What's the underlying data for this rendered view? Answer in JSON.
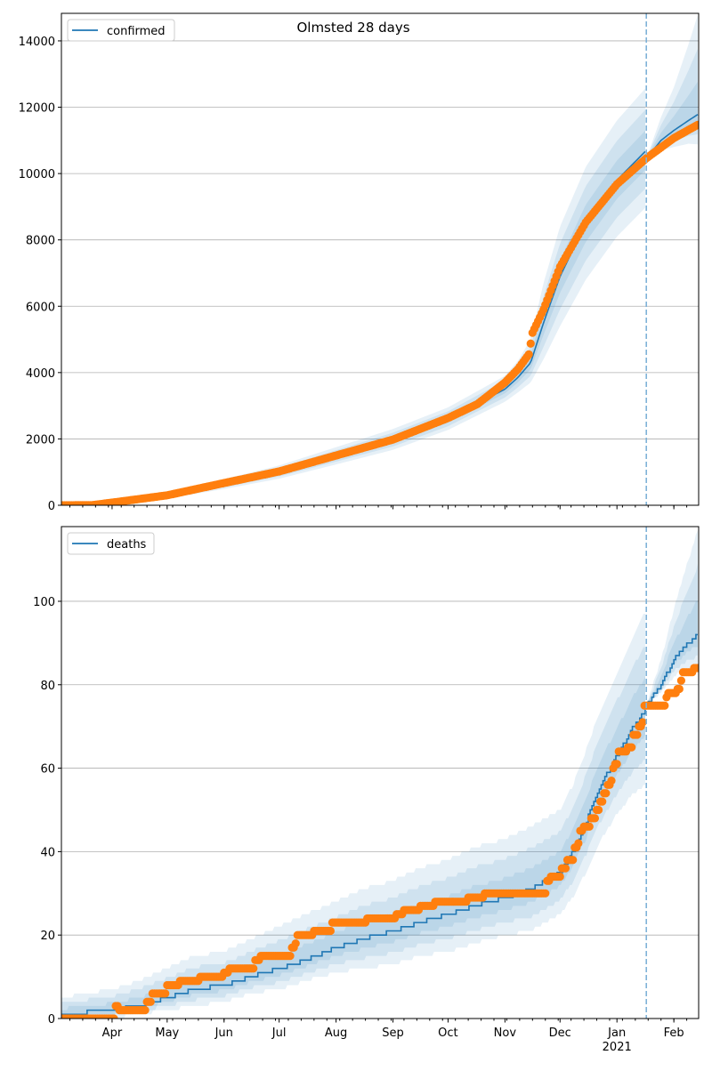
{
  "title": "Olmsted 28 days",
  "colors": {
    "model": "#1f77b4",
    "observed": "#ff7f0e",
    "band": "#1f77b4",
    "grid": "#b0b0b0",
    "forecast_line": "#7fb2d8"
  },
  "chart_data": [
    {
      "type": "line",
      "id": "confirmed",
      "legend": "confirmed",
      "legend_placement": "top-left",
      "ylim": [
        0,
        14830
      ],
      "yticks": [
        0,
        2000,
        4000,
        6000,
        8000,
        10000,
        12000,
        14000
      ],
      "grid": true,
      "x_unit": "days since 2020-03-01",
      "xlim": [
        3.4,
        350.5
      ],
      "forecast_start_day": 322,
      "band_levels": [
        1,
        0.66,
        0.33
      ],
      "observed_knots": [
        [
          3,
          0
        ],
        [
          20,
          5
        ],
        [
          31,
          80
        ],
        [
          61,
          300
        ],
        [
          92,
          670
        ],
        [
          122,
          1020
        ],
        [
          153,
          1500
        ],
        [
          184,
          1980
        ],
        [
          214,
          2630
        ],
        [
          230,
          3050
        ],
        [
          245,
          3700
        ],
        [
          252,
          4100
        ],
        [
          258,
          4550
        ],
        [
          260,
          5200
        ],
        [
          266,
          5900
        ],
        [
          275,
          7190
        ],
        [
          289,
          8530
        ],
        [
          306,
          9680
        ],
        [
          322,
          10460
        ],
        [
          337,
          11070
        ],
        [
          350,
          11470
        ]
      ],
      "model_segments": [
        {
          "days": [
            3,
            31,
            61,
            92,
            122,
            153,
            184,
            214,
            245,
            252,
            259,
            266,
            275,
            289,
            306,
            322
          ],
          "median": [
            0,
            80,
            290,
            640,
            1000,
            1480,
            1970,
            2600,
            3500,
            3850,
            4300,
            5500,
            6900,
            8500,
            9800,
            10700
          ],
          "upper": [
            0,
            40,
            90,
            150,
            200,
            270,
            330,
            350,
            400,
            500,
            700,
            1200,
            1500,
            1700,
            1800,
            1900
          ],
          "lower": [
            0,
            40,
            90,
            150,
            200,
            250,
            300,
            330,
            380,
            450,
            600,
            1100,
            1500,
            1700,
            1700,
            1700
          ]
        },
        {
          "days": [
            322,
            330,
            337,
            345,
            350
          ],
          "median": [
            10450,
            11000,
            11300,
            11600,
            11780
          ],
          "upper": [
            0,
            700,
            1300,
            2300,
            3000
          ],
          "lower": [
            0,
            300,
            500,
            700,
            900
          ]
        }
      ]
    },
    {
      "type": "line",
      "id": "deaths",
      "legend": "deaths",
      "legend_placement": "top-left",
      "ylim": [
        0,
        117.9
      ],
      "yticks": [
        0,
        20,
        40,
        60,
        80,
        100
      ],
      "grid": true,
      "x_unit": "days since 2020-03-01",
      "xlim": [
        3.4,
        350.5
      ],
      "forecast_start_day": 322,
      "band_levels": [
        1,
        0.66,
        0.33
      ],
      "observed_steps": [
        [
          3,
          0
        ],
        [
          33,
          3
        ],
        [
          35,
          2
        ],
        [
          50,
          4
        ],
        [
          53,
          6
        ],
        [
          61,
          8
        ],
        [
          68,
          9
        ],
        [
          79,
          10
        ],
        [
          92,
          11
        ],
        [
          95,
          12
        ],
        [
          109,
          14
        ],
        [
          112,
          15
        ],
        [
          129,
          17
        ],
        [
          131,
          18
        ],
        [
          132,
          20
        ],
        [
          141,
          21
        ],
        [
          151,
          23
        ],
        [
          170,
          24
        ],
        [
          186,
          25
        ],
        [
          190,
          26
        ],
        [
          199,
          27
        ],
        [
          207,
          28
        ],
        [
          225,
          29
        ],
        [
          234,
          30
        ],
        [
          268,
          33
        ],
        [
          270,
          34
        ],
        [
          276,
          36
        ],
        [
          279,
          38
        ],
        [
          283,
          41
        ],
        [
          285,
          42
        ],
        [
          286,
          45
        ],
        [
          288,
          46
        ],
        [
          292,
          48
        ],
        [
          295,
          50
        ],
        [
          297,
          52
        ],
        [
          299,
          54
        ],
        [
          301,
          56
        ],
        [
          303,
          57
        ],
        [
          304,
          60
        ],
        [
          305,
          61
        ],
        [
          307,
          64
        ],
        [
          312,
          65
        ],
        [
          315,
          68
        ],
        [
          318,
          70
        ],
        [
          320,
          71
        ],
        [
          321,
          75
        ],
        [
          333,
          77
        ],
        [
          334,
          78
        ],
        [
          339,
          79
        ],
        [
          341,
          81
        ],
        [
          342,
          83
        ],
        [
          348,
          84
        ]
      ],
      "model_segments": [
        {
          "days": [
            3,
            31,
            45,
            61,
            75,
            92,
            106,
            122,
            136,
            153,
            167,
            184,
            198,
            214,
            228,
            245,
            259,
            275,
            282,
            289,
            296,
            306,
            315,
            322
          ],
          "median": [
            1,
            2,
            3,
            5,
            7,
            8,
            10,
            12,
            14,
            17,
            19,
            21,
            23,
            25,
            27,
            29,
            31,
            35,
            40,
            47,
            55,
            63,
            70,
            74
          ],
          "upper": [
            4,
            5,
            6,
            7,
            8,
            8,
            9,
            10,
            11,
            11,
            12,
            12,
            13,
            13,
            14,
            14,
            15,
            15,
            16,
            17,
            18,
            20,
            22,
            24
          ],
          "lower": [
            1,
            2,
            2,
            3,
            4,
            4,
            4,
            5,
            5,
            6,
            7,
            8,
            8,
            9,
            9,
            9,
            10,
            10,
            11,
            12,
            13,
            14,
            16,
            18
          ]
        },
        {
          "days": [
            322,
            330,
            337,
            345,
            350
          ],
          "median": [
            75,
            80,
            86,
            90,
            92
          ],
          "upper": [
            0,
            6,
            12,
            20,
            25
          ],
          "lower": [
            0,
            2,
            4,
            6,
            8
          ]
        }
      ]
    }
  ],
  "x_axis": {
    "months": [
      {
        "label": "Apr",
        "day": 31
      },
      {
        "label": "May",
        "day": 61
      },
      {
        "label": "Jun",
        "day": 92
      },
      {
        "label": "Jul",
        "day": 122
      },
      {
        "label": "Aug",
        "day": 153
      },
      {
        "label": "Sep",
        "day": 184
      },
      {
        "label": "Oct",
        "day": 214
      },
      {
        "label": "Nov",
        "day": 245
      },
      {
        "label": "Dec",
        "day": 275
      },
      {
        "label": "Jan",
        "day": 306
      },
      {
        "label": "Feb",
        "day": 337
      }
    ],
    "year_label": "2021",
    "minor_tick_every_days": 7
  }
}
